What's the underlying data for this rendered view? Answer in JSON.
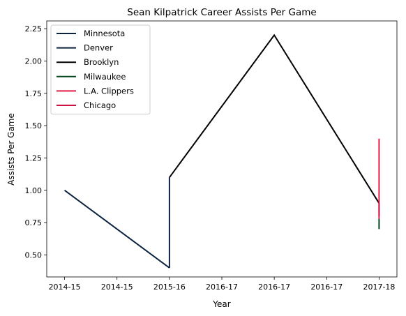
{
  "chart_data": {
    "type": "line",
    "title": "Sean Kilpatrick Career Assists Per Game",
    "xlabel": "Year",
    "ylabel": "Assists Per Game",
    "x_tick_labels": [
      "2014-15",
      "2014-15",
      "2015-16",
      "2016-17",
      "2016-17",
      "2016-17",
      "2017-18"
    ],
    "x_tick_positions": [
      0,
      0.5,
      1,
      1.5,
      2,
      2.5,
      3
    ],
    "xlim": [
      -0.17,
      3.17
    ],
    "ylim": [
      0.33,
      2.31
    ],
    "y_ticks": [
      0.5,
      0.75,
      1.0,
      1.25,
      1.5,
      1.75,
      2.0,
      2.25
    ],
    "y_tick_labels": [
      "0.50",
      "0.75",
      "1.00",
      "1.25",
      "1.50",
      "1.75",
      "2.00",
      "2.25"
    ],
    "grid": false,
    "legend_position": "top-left",
    "series": [
      {
        "name": "Minnesota",
        "color": "#0c2340",
        "points": [
          [
            0,
            1.0
          ],
          [
            1,
            0.4
          ]
        ]
      },
      {
        "name": "Denver",
        "color": "#0e2240",
        "points": [
          [
            1,
            0.4
          ],
          [
            1,
            1.1
          ]
        ]
      },
      {
        "name": "Brooklyn",
        "color": "#000000",
        "points": [
          [
            1,
            1.1
          ],
          [
            2,
            2.2
          ],
          [
            3,
            0.9
          ]
        ]
      },
      {
        "name": "Milwaukee",
        "color": "#00471b",
        "points": [
          [
            3,
            0.7
          ],
          [
            3,
            0.78
          ]
        ]
      },
      {
        "name": "L.A. Clippers",
        "color": "#e31b44",
        "points": [
          [
            3,
            0.78
          ],
          [
            3,
            1.4
          ]
        ]
      },
      {
        "name": "Chicago",
        "color": "#ce1141",
        "points": [
          [
            3,
            0.8
          ],
          [
            3,
            0.9
          ]
        ]
      }
    ]
  }
}
